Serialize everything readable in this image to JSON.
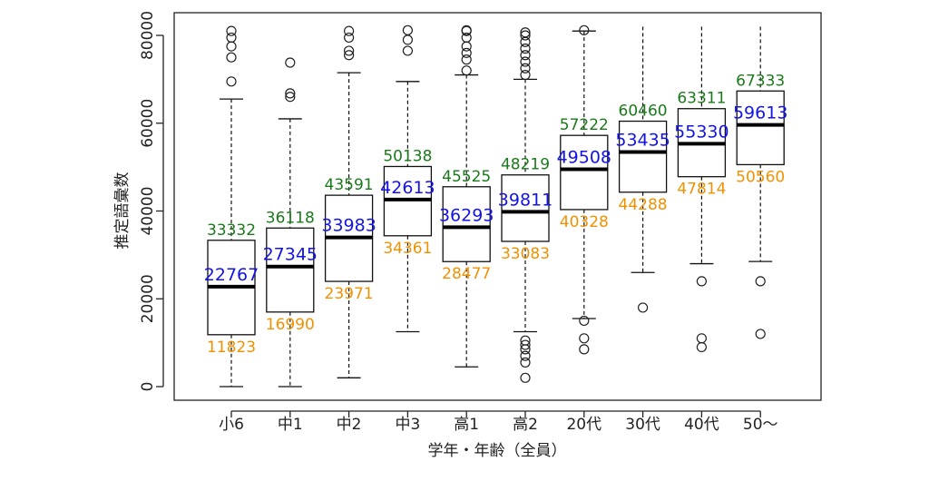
{
  "chart_data": {
    "type": "boxplot",
    "xlabel": "学年・年齢（全員）",
    "ylabel": "推定語彙数",
    "ylim": [
      0,
      82000
    ],
    "y_ticks": [
      0,
      20000,
      40000,
      60000,
      80000
    ],
    "grid": false,
    "label_colors": {
      "q3": "#1a7a1a",
      "median": "#1414e6",
      "q1": "#f29100"
    },
    "categories": [
      "小6",
      "中1",
      "中2",
      "中3",
      "高1",
      "高2",
      "20代",
      "30代",
      "40代",
      "50〜"
    ],
    "boxes": [
      {
        "category": "小6",
        "whisker_low": 0,
        "q1": 11823,
        "median": 22767,
        "q3": 33332,
        "whisker_high": 65500,
        "outliers": [
          69500,
          75000,
          77500,
          79500,
          81000
        ],
        "q1_label": "11823",
        "median_label": "22767",
        "q3_label": "33332"
      },
      {
        "category": "中1",
        "whisker_low": 0,
        "q1": 16990,
        "median": 27345,
        "q3": 36118,
        "whisker_high": 61000,
        "outliers": [
          66000,
          66800,
          73800
        ],
        "q1_label": "16990",
        "median_label": "27345",
        "q3_label": "36118"
      },
      {
        "category": "中2",
        "whisker_low": 2000,
        "q1": 23971,
        "median": 33983,
        "q3": 43591,
        "whisker_high": 71500,
        "outliers": [
          75500,
          76500,
          79500,
          81000
        ],
        "q1_label": "23971",
        "median_label": "33983",
        "q3_label": "43591"
      },
      {
        "category": "中3",
        "whisker_low": 12500,
        "q1": 34361,
        "median": 42613,
        "q3": 50138,
        "whisker_high": 69500,
        "outliers": [
          76500,
          79000,
          82000
        ],
        "q1_label": "34361",
        "median_label": "42613",
        "q3_label": "50138"
      },
      {
        "category": "高1",
        "whisker_low": 4500,
        "q1": 28477,
        "median": 36293,
        "q3": 45525,
        "whisker_high": 71000,
        "outliers": [
          72000,
          74500,
          76000,
          77500,
          79500,
          81000,
          82000
        ],
        "q1_label": "28477",
        "median_label": "36293",
        "q3_label": "45525"
      },
      {
        "category": "高2",
        "whisker_low": 12500,
        "q1": 33083,
        "median": 39811,
        "q3": 48219,
        "whisker_high": 70000,
        "outliers": [
          2000,
          5500,
          7000,
          8500,
          9500,
          10500,
          71000,
          72500,
          74000,
          75500,
          77000,
          78500,
          80000,
          81500
        ],
        "q1_label": "33083",
        "median_label": "39811",
        "q3_label": "48219"
      },
      {
        "category": "20代",
        "whisker_low": 15500,
        "q1": 40328,
        "median": 49508,
        "q3": 57222,
        "whisker_high": 81000,
        "outliers": [
          8500,
          11000,
          15000,
          82000
        ],
        "q1_label": "40328",
        "median_label": "49508",
        "q3_label": "57222"
      },
      {
        "category": "30代",
        "whisker_low": 26000,
        "q1": 44288,
        "median": 53435,
        "q3": 60460,
        "whisker_high": 82000,
        "outliers": [
          18000
        ],
        "q1_label": "44288",
        "median_label": "53435",
        "q3_label": "60460"
      },
      {
        "category": "40代",
        "whisker_low": 28000,
        "q1": 47814,
        "median": 55330,
        "q3": 63311,
        "whisker_high": 82000,
        "outliers": [
          9000,
          11000,
          24000
        ],
        "q1_label": "47814",
        "median_label": "55330",
        "q3_label": "63311"
      },
      {
        "category": "50〜",
        "whisker_low": 28500,
        "q1": 50560,
        "median": 59613,
        "q3": 67333,
        "whisker_high": 82000,
        "outliers": [
          12000,
          24000
        ],
        "q1_label": "50560",
        "median_label": "59613",
        "q3_label": "67333"
      }
    ]
  }
}
